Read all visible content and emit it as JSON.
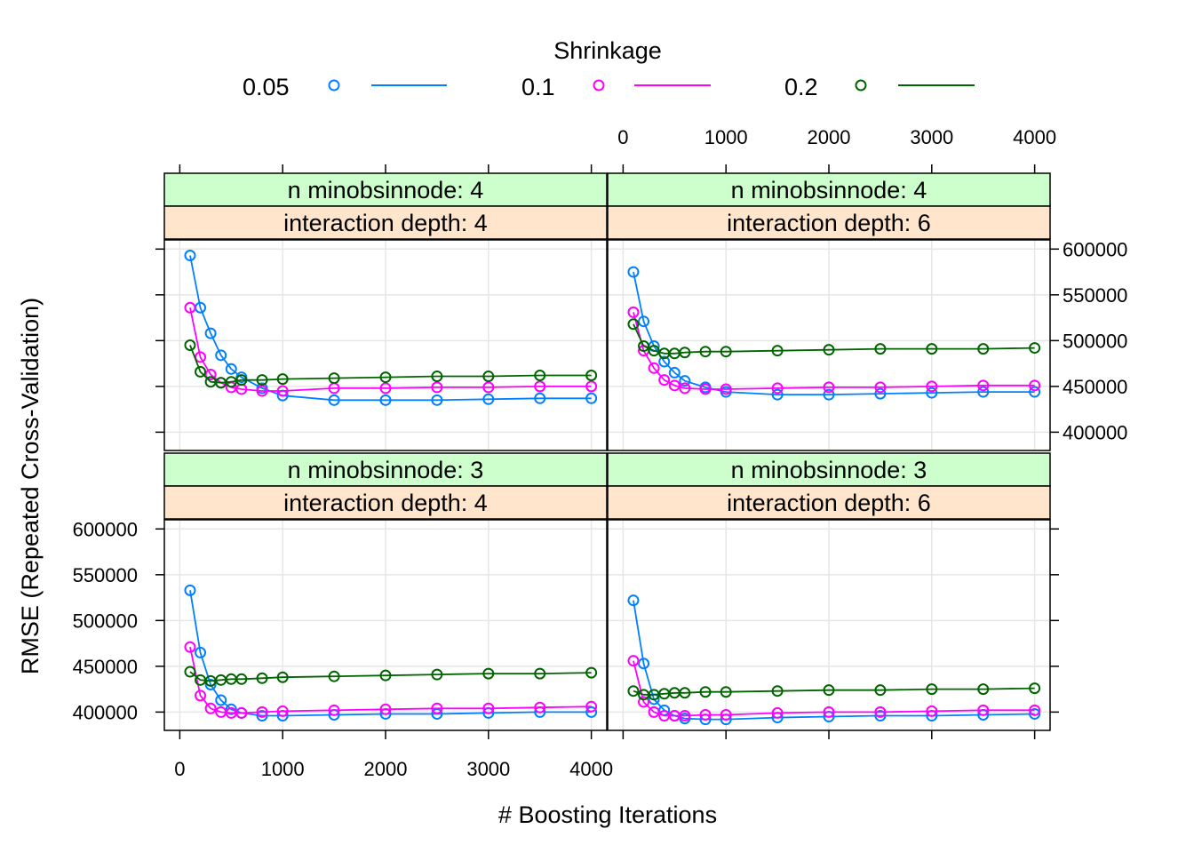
{
  "chart_data": {
    "type": "line",
    "xlabel": "# Boosting Iterations",
    "ylabel": "RMSE (Repeated Cross-Validation)",
    "xlim": [
      -150,
      4150
    ],
    "ylim": [
      380000,
      610000
    ],
    "x_ticks": [
      0,
      1000,
      2000,
      3000,
      4000
    ],
    "y_ticks": [
      400000,
      450000,
      500000,
      550000,
      600000
    ],
    "grid": true,
    "legend": {
      "title": "Shrinkage",
      "placement": "top",
      "entries": [
        {
          "label": "0.05",
          "color": "#0080ff"
        },
        {
          "label": "0.1",
          "color": "#ff00ff"
        },
        {
          "label": "0.2",
          "color": "#006400"
        }
      ]
    },
    "x": [
      100,
      200,
      300,
      400,
      500,
      600,
      800,
      1000,
      1500,
      2000,
      2500,
      3000,
      3500,
      4000
    ],
    "panels": [
      {
        "strip_top": "n minobsinnode: 4",
        "strip_bottom": "interaction depth: 4",
        "series": [
          {
            "name": "0.05",
            "values": [
              593000,
              536000,
              508000,
              484000,
              469000,
              460000,
              448000,
              440000,
              435000,
              435000,
              435000,
              436000,
              437000,
              437000
            ]
          },
          {
            "name": "0.1",
            "values": [
              536000,
              482000,
              463000,
              454000,
              449000,
              447000,
              445000,
              445000,
              448000,
              448000,
              449000,
              449000,
              450000,
              450000
            ]
          },
          {
            "name": "0.2",
            "values": [
              495000,
              466000,
              455000,
              454000,
              455000,
              457000,
              457000,
              458000,
              459000,
              460000,
              461000,
              461000,
              462000,
              462000
            ]
          }
        ]
      },
      {
        "strip_top": "n minobsinnode: 4",
        "strip_bottom": "interaction depth: 6",
        "series": [
          {
            "name": "0.05",
            "values": [
              575000,
              521000,
              494000,
              477000,
              465000,
              456000,
              449000,
              444000,
              441000,
              441000,
              442000,
              443000,
              444000,
              444000
            ]
          },
          {
            "name": "0.1",
            "values": [
              531000,
              489000,
              470000,
              457000,
              451000,
              448000,
              447000,
              447000,
              448000,
              449000,
              449000,
              450000,
              451000,
              451000
            ]
          },
          {
            "name": "0.2",
            "values": [
              518000,
              494000,
              489000,
              486000,
              486000,
              487000,
              488000,
              488000,
              489000,
              490000,
              491000,
              491000,
              491000,
              492000
            ]
          }
        ]
      },
      {
        "strip_top": "n minobsinnode: 3",
        "strip_bottom": "interaction depth: 4",
        "series": [
          {
            "name": "0.05",
            "values": [
              533000,
              465000,
              430000,
              413000,
              403000,
              399000,
              396000,
              396000,
              397000,
              398000,
              398000,
              399000,
              400000,
              400000
            ]
          },
          {
            "name": "0.1",
            "values": [
              471000,
              418000,
              404000,
              400000,
              399000,
              399000,
              400000,
              401000,
              402000,
              403000,
              404000,
              404000,
              405000,
              406000
            ]
          },
          {
            "name": "0.2",
            "values": [
              444000,
              435000,
              434000,
              435000,
              436000,
              436000,
              437000,
              438000,
              439000,
              440000,
              441000,
              442000,
              442000,
              443000
            ]
          }
        ]
      },
      {
        "strip_top": "n minobsinnode: 3",
        "strip_bottom": "interaction depth: 6",
        "series": [
          {
            "name": "0.05",
            "values": [
              522000,
              453000,
              414000,
              402000,
              396000,
              393000,
              392000,
              392000,
              394000,
              395000,
              396000,
              396000,
              397000,
              398000
            ]
          },
          {
            "name": "0.1",
            "values": [
              456000,
              411000,
              400000,
              396000,
              396000,
              396000,
              397000,
              397000,
              399000,
              400000,
              400000,
              401000,
              402000,
              402000
            ]
          },
          {
            "name": "0.2",
            "values": [
              423000,
              419000,
              419000,
              420000,
              421000,
              421000,
              422000,
              422000,
              423000,
              424000,
              424000,
              425000,
              425000,
              426000
            ]
          }
        ]
      }
    ]
  },
  "colors": {
    "strip_top_bg": "#ccffcc",
    "strip_bottom_bg": "#ffe5cc",
    "grid": "#e6e6e6",
    "frame": "#000000"
  }
}
